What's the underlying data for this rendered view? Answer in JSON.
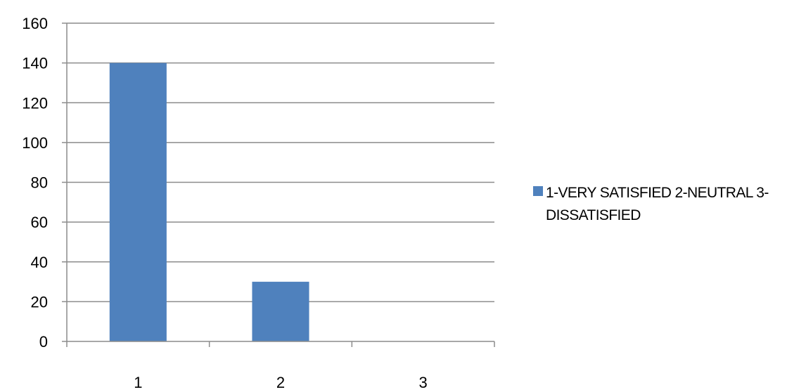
{
  "chart_data": {
    "type": "bar",
    "categories": [
      "1",
      "2",
      "3"
    ],
    "series": [
      {
        "name": "1-VERY SATISFIED 2-NEUTRAL 3-DISSATISFIED",
        "values": [
          140,
          30,
          0
        ],
        "color": "#4f81bd"
      }
    ],
    "title": "",
    "xlabel": "",
    "ylabel": "",
    "ylim": [
      0,
      160
    ],
    "yticks": [
      0,
      20,
      40,
      60,
      80,
      100,
      120,
      140,
      160
    ],
    "grid": true,
    "legend_position": "right"
  }
}
